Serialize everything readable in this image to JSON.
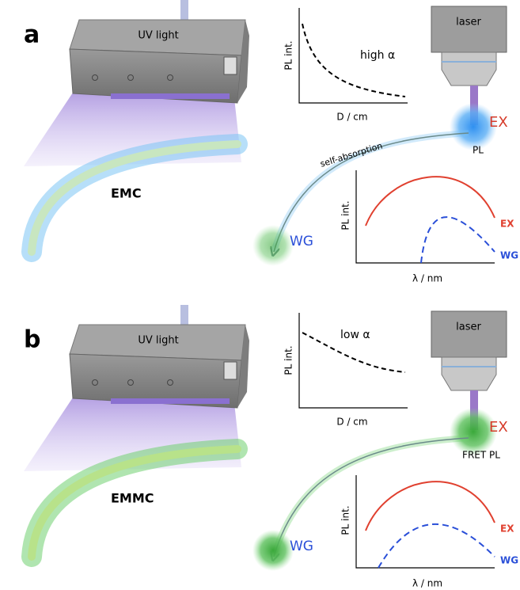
{
  "panels": [
    {
      "label": "a",
      "uv_label": "UV light",
      "fiber_label": "EMC",
      "laser_label": "laser",
      "ex_label": "EX",
      "pl_label": "PL",
      "path_label": "self-absorption",
      "wg_label": "WG",
      "inset_top": {
        "y_label": "PL int.",
        "x_label": "D / cm",
        "annotation": "high α"
      },
      "inset_bottom": {
        "y_label": "PL int.",
        "x_label": "λ / nm",
        "ex_legend": "EX",
        "wg_legend": "WG"
      }
    },
    {
      "label": "b",
      "uv_label": "UV light",
      "fiber_label": "EMMC",
      "laser_label": "laser",
      "ex_label": "EX",
      "pl_label": "FRET PL",
      "wg_label": "WG",
      "inset_top": {
        "y_label": "PL int.",
        "x_label": "D / cm",
        "annotation": "low α"
      },
      "inset_bottom": {
        "y_label": "PL int.",
        "x_label": "λ / nm",
        "ex_legend": "EX",
        "wg_legend": "WG"
      }
    }
  ]
}
